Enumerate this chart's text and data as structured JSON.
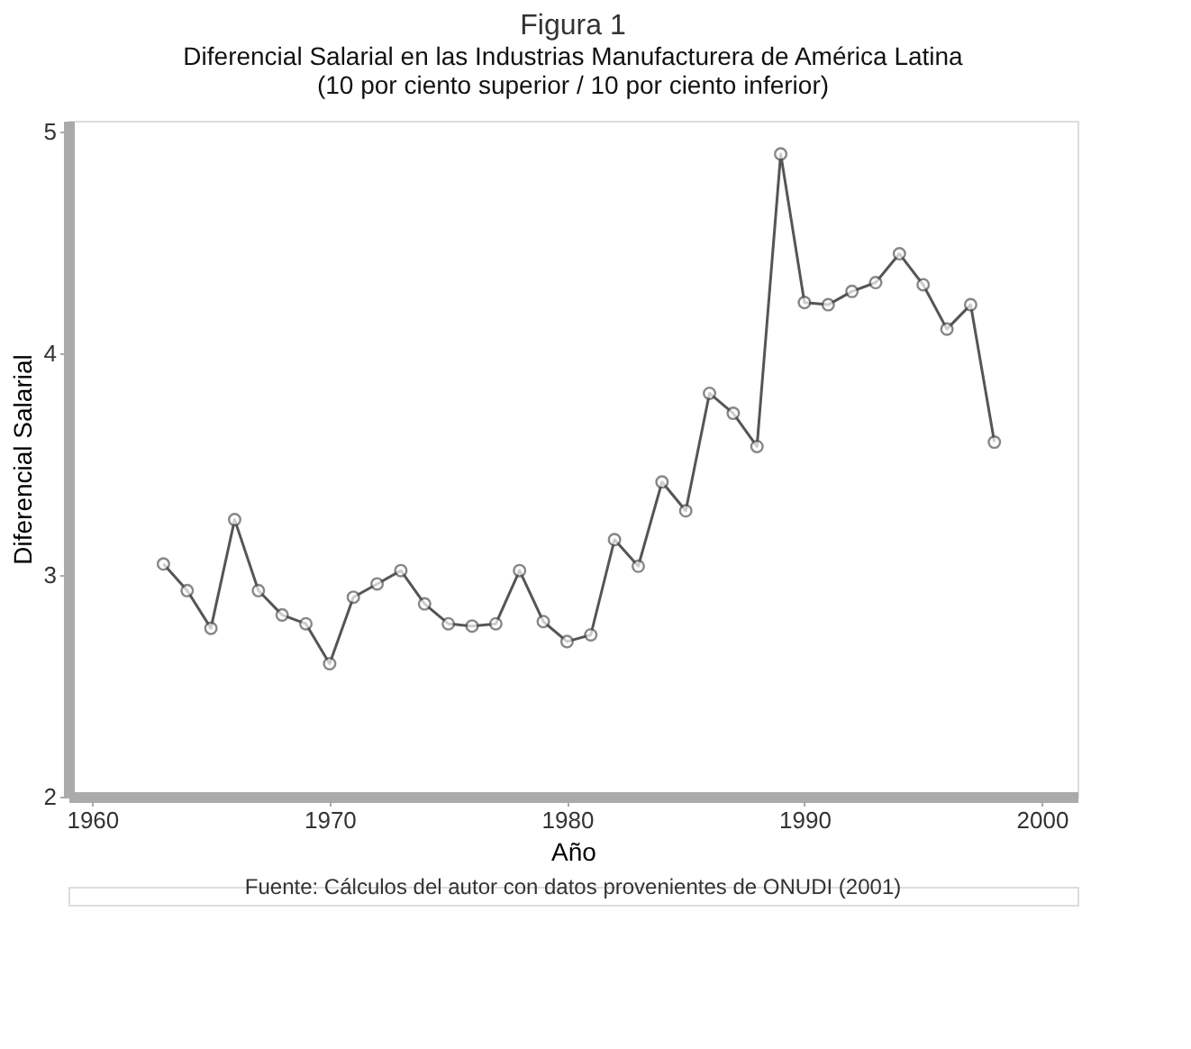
{
  "chart_data": {
    "type": "line",
    "title": "Figura 1",
    "subtitle": "Diferencial Salarial en las Industrias Manufacturera de América Latina\n(10 por ciento superior / 10 por ciento inferior)",
    "xlabel": "Año",
    "ylabel": "Diferencial Salarial",
    "x": [
      1963,
      1964,
      1965,
      1966,
      1967,
      1968,
      1969,
      1970,
      1971,
      1972,
      1973,
      1974,
      1975,
      1976,
      1977,
      1978,
      1979,
      1980,
      1981,
      1982,
      1983,
      1984,
      1985,
      1986,
      1987,
      1988,
      1989,
      1990,
      1991,
      1992,
      1993,
      1994,
      1995,
      1996,
      1997,
      1998
    ],
    "series": [
      {
        "color": "#555555",
        "values": [
          3.05,
          2.93,
          2.76,
          3.25,
          2.93,
          2.82,
          2.78,
          2.6,
          2.9,
          2.96,
          3.02,
          2.87,
          2.78,
          2.77,
          2.78,
          3.02,
          2.79,
          2.7,
          2.73,
          3.16,
          3.04,
          3.42,
          3.29,
          3.82,
          3.73,
          3.58,
          4.9,
          4.23,
          4.22,
          4.28,
          4.32,
          4.45,
          4.31,
          4.11,
          4.22,
          3.6
        ]
      }
    ],
    "xlim": [
      1959,
      2001.5
    ],
    "xticks": [
      1960,
      1970,
      1980,
      1990,
      2000
    ],
    "ylim": [
      2,
      5.05
    ],
    "yticks": [
      2,
      3,
      4,
      5
    ],
    "marker": "circle",
    "line_style": "solid",
    "grid": false,
    "legend": false,
    "annotations": [
      "Fuente: Cálculos del autor con datos provenientes de ONUDI (2001)"
    ]
  }
}
